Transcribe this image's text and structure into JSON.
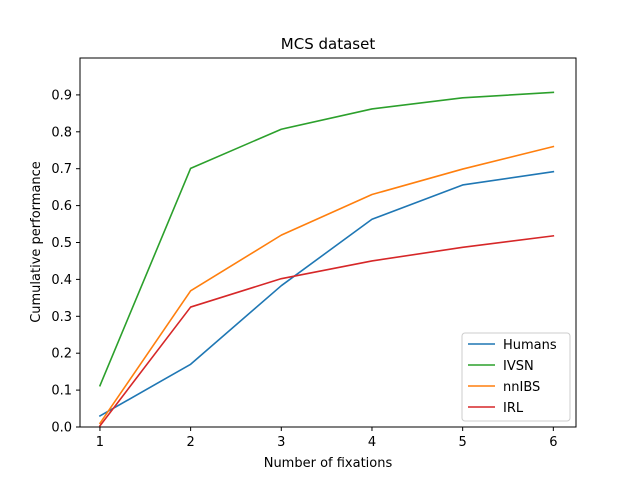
{
  "chart_data": {
    "type": "line",
    "title": "MCS dataset",
    "xlabel": "Number of fixations",
    "ylabel": "Cumulative performance",
    "x": [
      1,
      2,
      3,
      4,
      5,
      6
    ],
    "xlim": [
      0.78,
      6.25
    ],
    "ylim": [
      0,
      1.0
    ],
    "xticks": [
      "1",
      "2",
      "3",
      "4",
      "5",
      "6"
    ],
    "yticks": [
      "0.0",
      "0.1",
      "0.2",
      "0.3",
      "0.4",
      "0.5",
      "0.6",
      "0.7",
      "0.8",
      "0.9"
    ],
    "grid": false,
    "legend_position": "lower-right",
    "series": [
      {
        "name": "Humans",
        "color": "#1f77b4",
        "values": [
          0.03,
          0.17,
          0.383,
          0.563,
          0.656,
          0.692
        ]
      },
      {
        "name": "IVSN",
        "color": "#2ca02c",
        "values": [
          0.112,
          0.701,
          0.807,
          0.862,
          0.892,
          0.907
        ]
      },
      {
        "name": "nnIBS",
        "color": "#ff7f0e",
        "values": [
          0.01,
          0.369,
          0.52,
          0.63,
          0.699,
          0.76
        ]
      },
      {
        "name": "IRL",
        "color": "#d62728",
        "values": [
          0.003,
          0.325,
          0.402,
          0.45,
          0.487,
          0.518
        ]
      }
    ]
  }
}
